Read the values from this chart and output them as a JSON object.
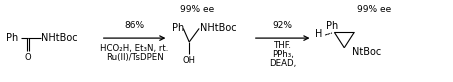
{
  "bg_color": "#ffffff",
  "fig_width": 4.53,
  "fig_height": 0.82,
  "dpi": 100,
  "font_size_mol": 7.0,
  "font_size_cond": 6.2,
  "font_size_yield": 6.5,
  "font_size_ee": 6.5,
  "font_size_small": 6.0,
  "conditions1_line1": "Ru(II)/TsDPEN",
  "conditions1_line2": "HCO₂H, Et₃N, rt.",
  "yield1": "86%",
  "conditions2_line1": "DEAD,",
  "conditions2_line2": "PPh₃,",
  "conditions2_line3": "THF.",
  "yield2": "92%",
  "ee1_label": "99% ee",
  "ee2_label": "99% ee",
  "mol1_Ph": "Ph",
  "mol1_O": "O",
  "mol1_NHtBoc": "NHtBoc",
  "mol2_Ph": "Ph",
  "mol2_OH": "OH",
  "mol2_NHtBoc": "NHtBoc",
  "mol3_H": "H",
  "mol3_Ph": "Ph",
  "mol3_NtBoc": "NtBoc"
}
